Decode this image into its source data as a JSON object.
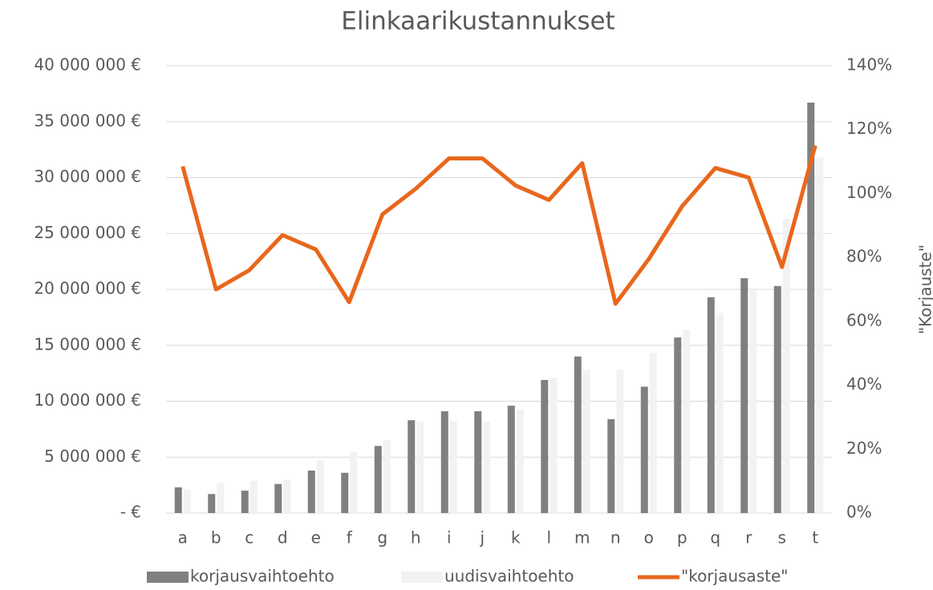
{
  "chart_data": {
    "type": "bar-line",
    "title": "Elinkaarikustannukset",
    "y2_label": "\"Korjauste\"",
    "categories": [
      "a",
      "b",
      "c",
      "d",
      "e",
      "f",
      "g",
      "h",
      "i",
      "j",
      "k",
      "l",
      "m",
      "n",
      "o",
      "p",
      "q",
      "r",
      "s",
      "t"
    ],
    "series": [
      {
        "name": "korjausvaihtoehto",
        "type": "bar",
        "color": "#808080",
        "values": [
          2300000,
          1700000,
          2000000,
          2600000,
          3800000,
          3600000,
          6000000,
          8300000,
          9100000,
          9100000,
          9600000,
          11900000,
          14000000,
          8400000,
          11300000,
          15700000,
          19300000,
          21000000,
          20300000,
          36700000
        ]
      },
      {
        "name": "uudisvaihtoehto",
        "type": "bar",
        "color": "#f2f2f2",
        "values": [
          2100000,
          2700000,
          2900000,
          3000000,
          4700000,
          5500000,
          6500000,
          8200000,
          8200000,
          8200000,
          9300000,
          12100000,
          12800000,
          12800000,
          14300000,
          16400000,
          17900000,
          19900000,
          26300000,
          31800000
        ]
      },
      {
        "name": "\"korjausaste\"",
        "type": "line",
        "axis": "y2",
        "color": "#e8671c",
        "values": [
          108.5,
          70,
          76,
          87,
          82.5,
          66,
          93.5,
          101.5,
          111,
          111,
          102.5,
          98,
          109.5,
          65.5,
          79.5,
          96,
          108,
          105,
          77,
          115
        ]
      }
    ],
    "ylim": [
      0,
      40000000
    ],
    "yticks": [
      {
        "value": 0,
        "label": "-   €"
      },
      {
        "value": 5000000,
        "label": "5 000 000 €"
      },
      {
        "value": 10000000,
        "label": "10 000 000 €"
      },
      {
        "value": 15000000,
        "label": "15 000 000 €"
      },
      {
        "value": 20000000,
        "label": "20 000 000 €"
      },
      {
        "value": 25000000,
        "label": "25 000 000 €"
      },
      {
        "value": 30000000,
        "label": "30 000 000 €"
      },
      {
        "value": 35000000,
        "label": "35 000 000 €"
      },
      {
        "value": 40000000,
        "label": "40 000 000 €"
      }
    ],
    "y2lim": [
      0,
      140
    ],
    "y2ticks": [
      {
        "value": 0,
        "label": "0%"
      },
      {
        "value": 20,
        "label": "20%"
      },
      {
        "value": 40,
        "label": "40%"
      },
      {
        "value": 60,
        "label": "60%"
      },
      {
        "value": 80,
        "label": "80%"
      },
      {
        "value": 100,
        "label": "100%"
      },
      {
        "value": 120,
        "label": "120%"
      },
      {
        "value": 140,
        "label": "140%"
      }
    ],
    "grid": true,
    "legend": "bottom"
  }
}
